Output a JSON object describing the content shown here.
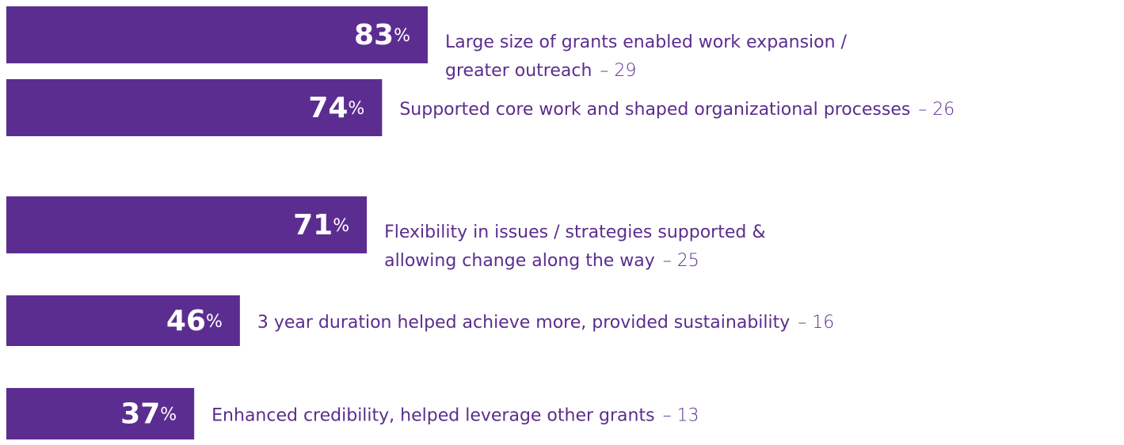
{
  "chart_data": {
    "type": "bar",
    "orientation": "horizontal",
    "color": "#5c2d91",
    "values": [
      83,
      74,
      71,
      46,
      37
    ],
    "value_labels": [
      "83%",
      "74%",
      "71%",
      "46%",
      "37%"
    ],
    "categories": [
      [
        "Large size of grants enabled work expansion /",
        "greater outreach"
      ],
      [
        "Supported core work and shaped organizational processes"
      ],
      [
        "Flexibility in issues / strategies supported &",
        "allowing change along the way"
      ],
      [
        "3 year duration helped achieve more, provided sustainability"
      ],
      [
        "Enhanced credibility, helped leverage other grants"
      ]
    ],
    "count_labels": [
      "– 29",
      "– 26",
      "– 25",
      "– 16",
      "– 13"
    ]
  }
}
